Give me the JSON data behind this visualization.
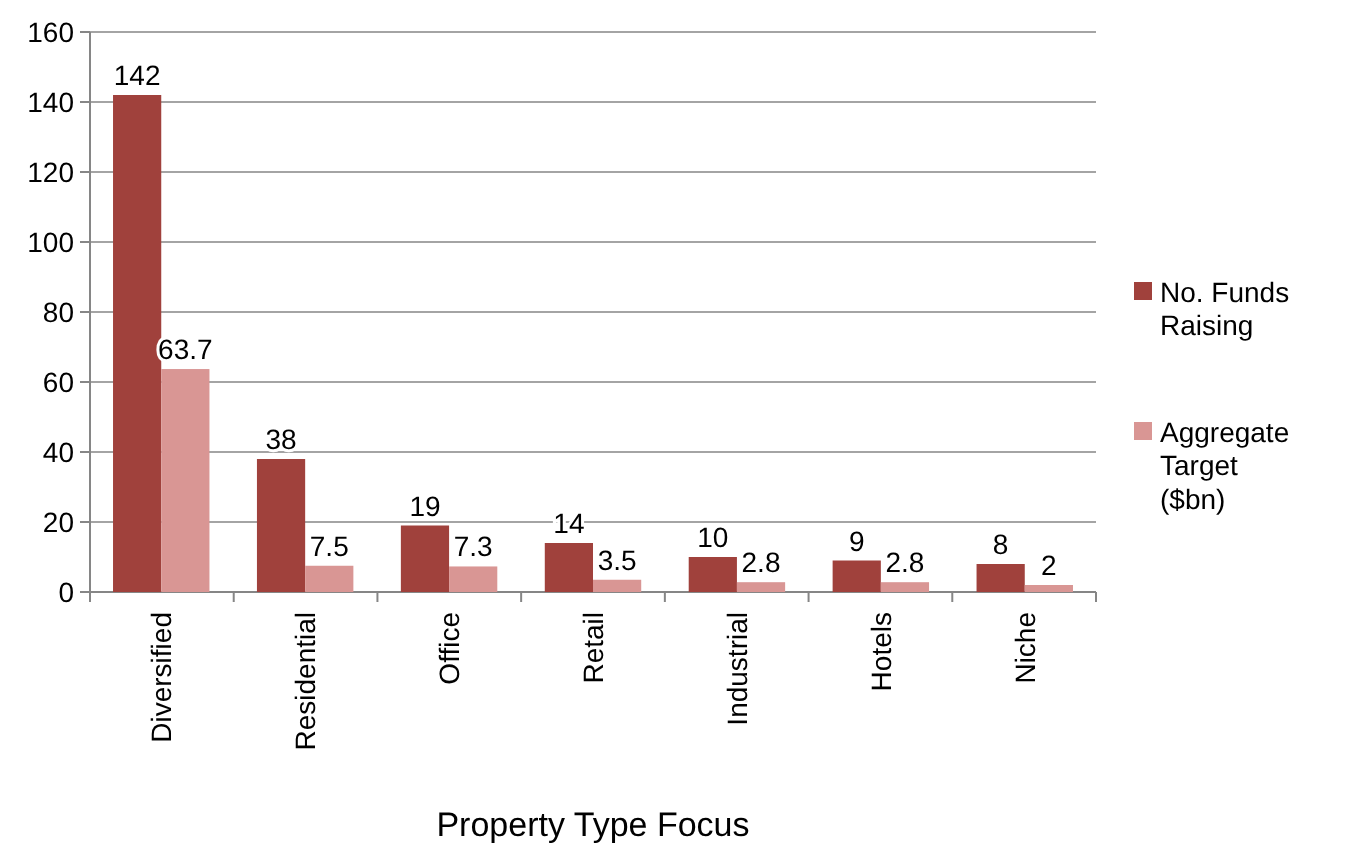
{
  "chart_data": {
    "type": "bar",
    "xlabel": "Property Type Focus",
    "categories": [
      "Diversified",
      "Residential",
      "Office",
      "Retail",
      "Industrial",
      "Hotels",
      "Niche"
    ],
    "series": [
      {
        "name": "No. Funds Raising",
        "color": "#a0413c",
        "values": [
          142,
          38,
          19,
          14,
          10,
          9,
          8
        ]
      },
      {
        "name": "Aggregate Target ($bn)",
        "color": "#d99694",
        "values": [
          63.7,
          7.5,
          7.3,
          3.5,
          2.8,
          2.8,
          2
        ]
      }
    ],
    "ylim": [
      0,
      160
    ],
    "yticks": [
      0,
      20,
      40,
      60,
      80,
      100,
      120,
      140,
      160
    ],
    "grid": "y",
    "legend": "right",
    "data_labels": true
  }
}
